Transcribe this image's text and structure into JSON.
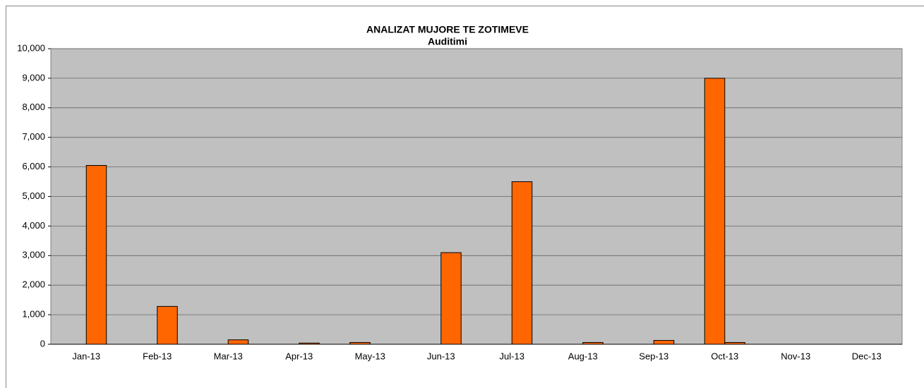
{
  "chart_data": {
    "type": "bar",
    "title": "ANALIZAT MUJORE TE ZOTIMEVE",
    "subtitle": "Auditimi",
    "categories": [
      "Jan-13",
      "Feb-13",
      "Mar-13",
      "Apr-13",
      "May-13",
      "Jun-13",
      "Jul-13",
      "Aug-13",
      "Sep-13",
      "Oct-13",
      "Nov-13",
      "Dec-13"
    ],
    "series": [
      {
        "color": "#ff6600",
        "values": [
          null,
          null,
          null,
          null,
          60,
          null,
          null,
          null,
          null,
          9000,
          null,
          null
        ]
      },
      {
        "color": "#ff6600",
        "values": [
          6050,
          1280,
          150,
          40,
          null,
          3100,
          5500,
          60,
          130,
          60,
          null,
          null
        ]
      }
    ],
    "ylim": [
      0,
      10000
    ],
    "yticks": [
      0,
      {
        "value": 1000,
        "label": "1,000"
      },
      {
        "value": 2000,
        "label": "2,000"
      },
      {
        "value": 3000,
        "label": "3,000"
      },
      {
        "value": 4000,
        "label": "4,000"
      },
      {
        "value": 5000,
        "label": "5,000"
      },
      {
        "value": 6000,
        "label": "6,000"
      },
      {
        "value": 7000,
        "label": "7,000"
      },
      {
        "value": 8000,
        "label": "8,000"
      },
      {
        "value": 9000,
        "label": "9,000"
      },
      {
        "value": 10000,
        "label": "10,000"
      }
    ],
    "grid": true
  }
}
